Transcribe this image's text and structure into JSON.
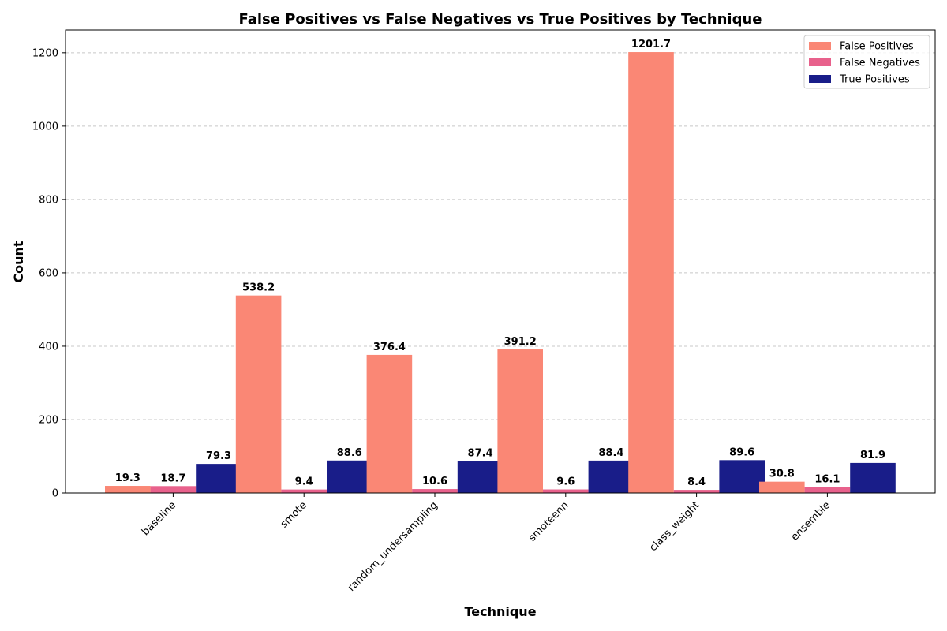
{
  "chart_data": {
    "type": "bar",
    "title": "False Positives vs False Negatives vs True Positives by Technique",
    "xlabel": "Technique",
    "ylabel": "Count",
    "categories": [
      "baseline",
      "smote",
      "random_undersampling",
      "smoteenn",
      "class_weight",
      "ensemble"
    ],
    "series": [
      {
        "name": "False Positives",
        "color": "#FA8775",
        "values": [
          19.3,
          538.2,
          376.4,
          391.2,
          1201.7,
          30.8
        ]
      },
      {
        "name": "False Negatives",
        "color": "#E8618C",
        "values": [
          18.7,
          9.4,
          10.6,
          9.6,
          8.4,
          16.1
        ]
      },
      {
        "name": "True Positives",
        "color": "#191D89",
        "values": [
          79.3,
          88.6,
          87.4,
          88.4,
          89.6,
          81.9
        ]
      }
    ],
    "ylim": [
      0,
      1262
    ],
    "yticks": [
      0,
      200,
      400,
      600,
      800,
      1000,
      1200
    ],
    "grid": "y-dashed",
    "legend": "top-right",
    "show_value_labels": true
  }
}
